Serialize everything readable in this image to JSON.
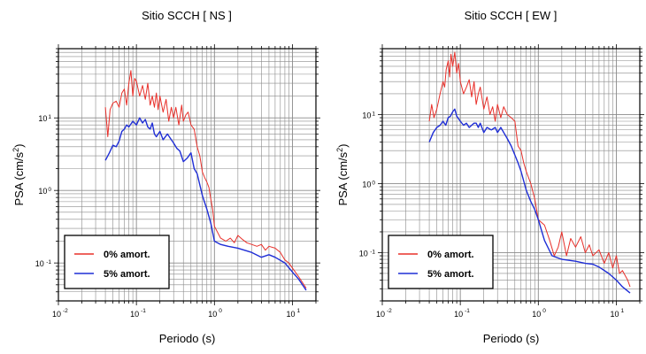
{
  "chart_data": [
    {
      "type": "line",
      "title": "Sitio SCCH [ NS ]",
      "xlabel": "Periodo (s)",
      "ylabel": "PSA (cm/s²)",
      "ylabel_base": "PSA (cm/s",
      "ylabel_sup": "2",
      "ylabel_tail": ")",
      "xscale": "log",
      "yscale": "log",
      "xlim": [
        0.01,
        20
      ],
      "ylim": [
        0.03,
        90
      ],
      "grid": true,
      "legend_placement": "bottom-left",
      "x_ticks": [
        {
          "base": "10",
          "exp": "-2"
        },
        {
          "base": "10",
          "exp": "-1"
        },
        {
          "base": "10",
          "exp": "0"
        },
        {
          "base": "10",
          "exp": "1"
        }
      ],
      "y_ticks": [
        {
          "base": "10",
          "exp": "-1"
        },
        {
          "base": "10",
          "exp": "0"
        },
        {
          "base": "10",
          "exp": "1"
        }
      ],
      "series": [
        {
          "name": "0% amort.",
          "color": "#e8302a",
          "x": [
            0.04,
            0.043,
            0.046,
            0.05,
            0.055,
            0.06,
            0.065,
            0.07,
            0.075,
            0.08,
            0.085,
            0.09,
            0.095,
            0.1,
            0.11,
            0.12,
            0.13,
            0.14,
            0.15,
            0.16,
            0.17,
            0.18,
            0.19,
            0.2,
            0.22,
            0.24,
            0.26,
            0.28,
            0.3,
            0.32,
            0.35,
            0.38,
            0.4,
            0.43,
            0.46,
            0.5,
            0.55,
            0.6,
            0.65,
            0.7,
            0.75,
            0.8,
            0.85,
            0.9,
            0.95,
            1.0,
            1.2,
            1.4,
            1.6,
            1.8,
            2.0,
            2.3,
            2.6,
            3.0,
            3.5,
            4.0,
            4.5,
            5.0,
            6.0,
            7.0,
            8.0,
            9.0,
            10,
            12,
            15
          ],
          "values": [
            14,
            5.5,
            13,
            16,
            17,
            14,
            22,
            25,
            15,
            30,
            45,
            20,
            35,
            32,
            20,
            28,
            18,
            30,
            15,
            20,
            14,
            22,
            13,
            20,
            12,
            18,
            9,
            14,
            10,
            14,
            8,
            15,
            9,
            11,
            12,
            8,
            7,
            4,
            3,
            1.8,
            1.5,
            1.3,
            1.1,
            0.75,
            0.55,
            0.32,
            0.22,
            0.2,
            0.22,
            0.19,
            0.24,
            0.21,
            0.19,
            0.18,
            0.17,
            0.18,
            0.15,
            0.17,
            0.16,
            0.14,
            0.11,
            0.1,
            0.085,
            0.065,
            0.045
          ]
        },
        {
          "name": "5% amort.",
          "color": "#1f2ed6",
          "x": [
            0.04,
            0.045,
            0.05,
            0.055,
            0.06,
            0.065,
            0.07,
            0.075,
            0.08,
            0.09,
            0.1,
            0.11,
            0.12,
            0.13,
            0.14,
            0.15,
            0.16,
            0.17,
            0.18,
            0.2,
            0.22,
            0.25,
            0.28,
            0.3,
            0.33,
            0.36,
            0.4,
            0.45,
            0.5,
            0.55,
            0.6,
            0.7,
            0.8,
            0.9,
            1.0,
            1.2,
            1.5,
            2.0,
            3.0,
            4.0,
            5.0,
            6.0,
            8.0,
            10,
            12,
            15
          ],
          "values": [
            2.6,
            3.3,
            4.2,
            4.0,
            4.8,
            6.5,
            7.0,
            8.0,
            7.5,
            9.0,
            8.0,
            10,
            8.5,
            9.5,
            7.5,
            7.0,
            8.5,
            6.0,
            5.5,
            6.5,
            5.0,
            6.0,
            5.0,
            4.5,
            3.8,
            3.5,
            2.5,
            2.8,
            3.3,
            2.0,
            1.7,
            0.85,
            0.55,
            0.35,
            0.2,
            0.18,
            0.17,
            0.16,
            0.14,
            0.12,
            0.13,
            0.12,
            0.1,
            0.075,
            0.06,
            0.042
          ]
        }
      ]
    },
    {
      "type": "line",
      "title": "Sitio SCCH [ EW ]",
      "xlabel": "Periodo (s)",
      "ylabel": "PSA (cm/s²)",
      "ylabel_base": "PSA (cm/s",
      "ylabel_sup": "2",
      "ylabel_tail": ")",
      "xscale": "log",
      "yscale": "log",
      "xlim": [
        0.01,
        20
      ],
      "ylim": [
        0.02,
        90
      ],
      "grid": true,
      "legend_placement": "bottom-left",
      "x_ticks": [
        {
          "base": "10",
          "exp": "-2"
        },
        {
          "base": "10",
          "exp": "-1"
        },
        {
          "base": "10",
          "exp": "0"
        },
        {
          "base": "10",
          "exp": "1"
        }
      ],
      "y_ticks": [
        {
          "base": "10",
          "exp": "-1"
        },
        {
          "base": "10",
          "exp": "0"
        },
        {
          "base": "10",
          "exp": "1"
        }
      ],
      "series": [
        {
          "name": "0% amort.",
          "color": "#e8302a",
          "x": [
            0.04,
            0.043,
            0.046,
            0.05,
            0.055,
            0.06,
            0.063,
            0.066,
            0.07,
            0.073,
            0.076,
            0.08,
            0.085,
            0.09,
            0.095,
            0.1,
            0.11,
            0.12,
            0.13,
            0.14,
            0.15,
            0.16,
            0.17,
            0.18,
            0.2,
            0.22,
            0.24,
            0.26,
            0.28,
            0.3,
            0.33,
            0.36,
            0.4,
            0.45,
            0.5,
            0.55,
            0.6,
            0.65,
            0.7,
            0.8,
            0.9,
            1.0,
            1.2,
            1.4,
            1.6,
            1.8,
            2.0,
            2.3,
            2.6,
            3.0,
            3.5,
            4.0,
            4.5,
            5.0,
            6.0,
            7.0,
            8.0,
            9.0,
            10,
            11,
            12,
            14,
            15
          ],
          "values": [
            8,
            14,
            9,
            12,
            20,
            30,
            25,
            45,
            60,
            35,
            75,
            50,
            80,
            40,
            55,
            30,
            20,
            25,
            32,
            18,
            30,
            14,
            20,
            25,
            12,
            18,
            10,
            13,
            8,
            14,
            9,
            13,
            10,
            9,
            8,
            3.5,
            3.0,
            2.0,
            1.5,
            1.0,
            0.6,
            0.3,
            0.25,
            0.15,
            0.09,
            0.12,
            0.2,
            0.09,
            0.16,
            0.12,
            0.17,
            0.1,
            0.13,
            0.09,
            0.11,
            0.07,
            0.1,
            0.06,
            0.09,
            0.05,
            0.055,
            0.04,
            0.032
          ]
        },
        {
          "name": "5% amort.",
          "color": "#1f2ed6",
          "x": [
            0.04,
            0.045,
            0.05,
            0.055,
            0.06,
            0.065,
            0.07,
            0.075,
            0.08,
            0.085,
            0.09,
            0.1,
            0.11,
            0.12,
            0.13,
            0.14,
            0.15,
            0.16,
            0.17,
            0.18,
            0.2,
            0.22,
            0.25,
            0.28,
            0.3,
            0.33,
            0.36,
            0.4,
            0.45,
            0.5,
            0.55,
            0.6,
            0.7,
            0.8,
            0.9,
            1.0,
            1.2,
            1.5,
            2.0,
            3.0,
            4.0,
            5.0,
            6.0,
            8.0,
            10,
            12,
            15
          ],
          "values": [
            4.0,
            5.5,
            6.5,
            7.0,
            8.0,
            7.0,
            9.0,
            9.5,
            11,
            12,
            9.5,
            8.0,
            7.0,
            7.5,
            6.5,
            7.0,
            7.5,
            7.5,
            6.5,
            7.5,
            5.5,
            6.5,
            6.0,
            6.5,
            5.5,
            6.5,
            5.5,
            4.5,
            3.5,
            2.6,
            2.0,
            1.5,
            0.8,
            0.55,
            0.42,
            0.3,
            0.15,
            0.09,
            0.08,
            0.075,
            0.07,
            0.068,
            0.062,
            0.05,
            0.04,
            0.032,
            0.026
          ]
        }
      ]
    }
  ]
}
